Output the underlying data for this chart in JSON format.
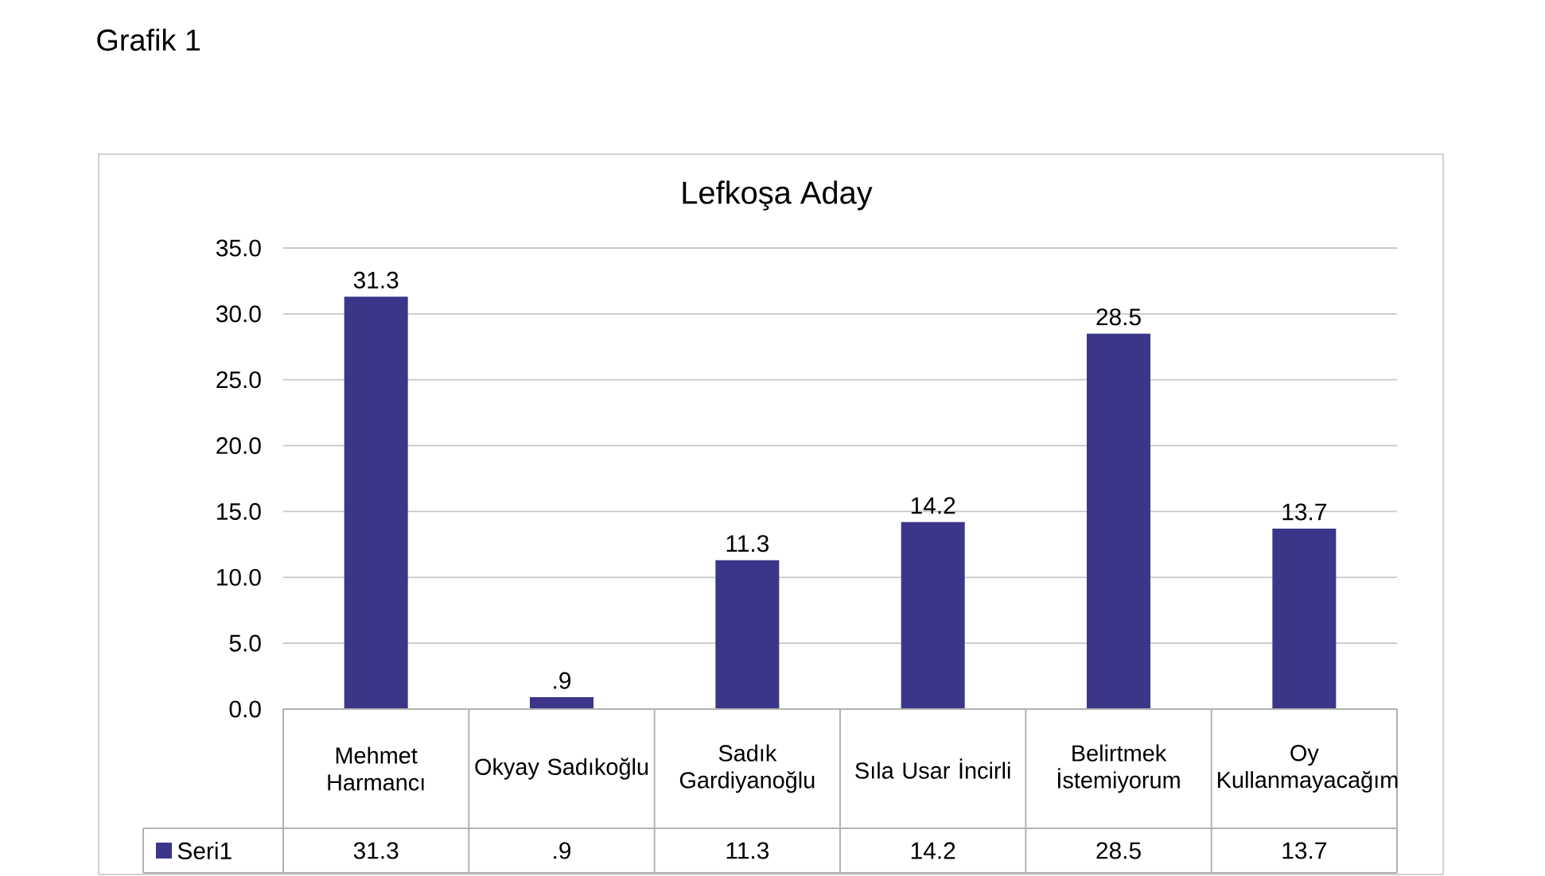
{
  "chart_data": {
    "type": "bar",
    "title": "Lefkoşa Aday",
    "annotations": [
      "Grafik 1"
    ],
    "categories": [
      "Mehmet Harmancı",
      "Okyay Sadıkoğlu",
      "Sadık Gardiyanoğlu",
      "Sıla Usar İncirli",
      "Belirtmek İstemiyorum",
      "Oy Kullanmayacağım"
    ],
    "series": [
      {
        "name": "Seri1",
        "color": "#3b3689",
        "values": [
          31.3,
          0.9,
          11.3,
          14.2,
          28.5,
          13.7
        ],
        "value_labels": [
          "31.3",
          ".9",
          "11.3",
          "14.2",
          "28.5",
          "13.7"
        ]
      }
    ],
    "ylim": [
      0,
      35
    ],
    "yticks": [
      {
        "value": 0,
        "label": "0.0"
      },
      {
        "value": 5,
        "label": "5.0"
      },
      {
        "value": 10,
        "label": "10.0"
      },
      {
        "value": 15,
        "label": "15.0"
      },
      {
        "value": 20,
        "label": "20.0"
      },
      {
        "value": 25,
        "label": "25.0"
      },
      {
        "value": 30,
        "label": "30.0"
      },
      {
        "value": 35,
        "label": "35.0"
      }
    ],
    "grid": "y",
    "legend": "bottom"
  }
}
